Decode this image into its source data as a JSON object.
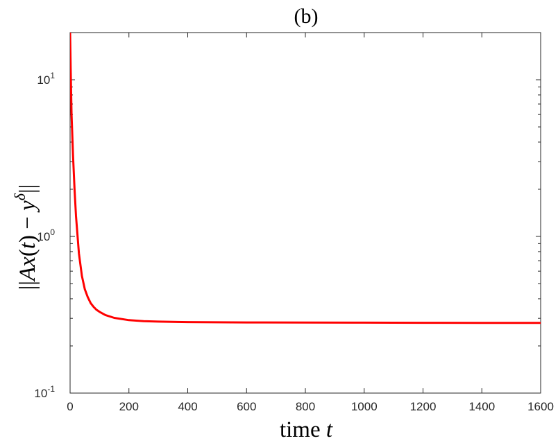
{
  "chart_data": {
    "type": "line",
    "title": "(b)",
    "xlabel_text": "time",
    "xlabel_var": "t",
    "ylabel": "||Ax(t) − y^δ||",
    "ylabel_parts": [
      "||",
      "Ax",
      "(",
      "t",
      ") − ",
      "y",
      "δ",
      "||"
    ],
    "xlim": [
      0,
      1600
    ],
    "ylim": [
      0.1,
      20
    ],
    "yscale": "log",
    "grid": false,
    "x_ticks": [
      0,
      200,
      400,
      600,
      800,
      1000,
      1200,
      1400,
      1600
    ],
    "x_tick_labels": [
      "0",
      "200",
      "400",
      "600",
      "800",
      "1000",
      "1200",
      "1400",
      "1600"
    ],
    "y_ticks": [
      0.1,
      1,
      10
    ],
    "y_tick_labels": [
      {
        "base": "10",
        "exp": "-1"
      },
      {
        "base": "10",
        "exp": "0"
      },
      {
        "base": "10",
        "exp": "1"
      }
    ],
    "series": [
      {
        "color": "#ff0000",
        "x": [
          0,
          2,
          5,
          10,
          15,
          20,
          30,
          40,
          50,
          60,
          70,
          80,
          90,
          100,
          120,
          150,
          200,
          250,
          300,
          400,
          500,
          600,
          800,
          1000,
          1200,
          1400,
          1600
        ],
        "y": [
          20,
          12,
          6,
          3.3,
          2.0,
          1.35,
          0.78,
          0.56,
          0.46,
          0.41,
          0.375,
          0.355,
          0.34,
          0.33,
          0.315,
          0.302,
          0.292,
          0.288,
          0.286,
          0.284,
          0.283,
          0.2825,
          0.282,
          0.2815,
          0.281,
          0.2808,
          0.2805
        ]
      }
    ]
  }
}
